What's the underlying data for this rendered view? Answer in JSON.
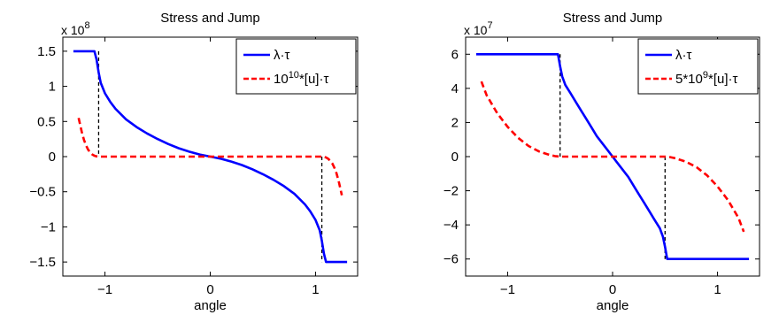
{
  "chart_data": [
    {
      "type": "line",
      "title": "Stress and Jump",
      "xlabel": "angle",
      "ylabel": "",
      "y_exponent_label": {
        "base": "x 10",
        "exp": "8"
      },
      "xlim": [
        -1.4,
        1.4
      ],
      "ylim": [
        -1.7,
        1.7
      ],
      "x_ticks": [
        -1,
        0,
        1
      ],
      "x_tick_labels": [
        "−1",
        "0",
        "1"
      ],
      "y_ticks": [
        1.5,
        1,
        0.5,
        0,
        -0.5,
        -1,
        -1.5
      ],
      "y_tick_labels": [
        "1.5",
        "1",
        "0.5",
        "0",
        "−0.5",
        "−1",
        "−1.5"
      ],
      "grid": false,
      "legend_position": "top-right",
      "series": [
        {
          "name": "λ·τ",
          "legend_parts": [
            {
              "t": "λ·τ"
            }
          ],
          "color": "#0000ff",
          "style": "solid",
          "x": [
            -1.3,
            -1.1,
            -1.08,
            -1.06,
            -1.04,
            -1.0,
            -0.95,
            -0.9,
            -0.8,
            -0.7,
            -0.6,
            -0.5,
            -0.4,
            -0.3,
            -0.2,
            -0.1,
            0,
            0.1,
            0.2,
            0.3,
            0.4,
            0.5,
            0.6,
            0.7,
            0.8,
            0.9,
            0.95,
            1.0,
            1.04,
            1.06,
            1.08,
            1.1,
            1.3
          ],
          "y": [
            1.5,
            1.5,
            1.38,
            1.2,
            1.05,
            0.9,
            0.78,
            0.68,
            0.53,
            0.42,
            0.33,
            0.25,
            0.18,
            0.12,
            0.07,
            0.03,
            0,
            -0.03,
            -0.07,
            -0.12,
            -0.18,
            -0.25,
            -0.33,
            -0.42,
            -0.53,
            -0.68,
            -0.78,
            -0.9,
            -1.05,
            -1.2,
            -1.38,
            -1.5,
            -1.5
          ]
        },
        {
          "name": "10^10*[u]·τ",
          "legend_parts": [
            {
              "t": "10"
            },
            {
              "t": "10",
              "sup": true
            },
            {
              "t": "*[u]·τ"
            }
          ],
          "color": "#ff0000",
          "style": "dashed",
          "x": [
            -1.25,
            -1.22,
            -1.2,
            -1.18,
            -1.16,
            -1.14,
            -1.12,
            -1.1,
            -1.08,
            -1.06,
            0,
            1.06,
            1.08,
            1.1,
            1.12,
            1.14,
            1.16,
            1.18,
            1.2,
            1.22,
            1.25
          ],
          "y": [
            0.55,
            0.35,
            0.24,
            0.16,
            0.1,
            0.06,
            0.03,
            0.012,
            0.004,
            0,
            0,
            0,
            0.004,
            -0.012,
            -0.03,
            -0.06,
            -0.1,
            -0.16,
            -0.24,
            -0.35,
            -0.55
          ]
        }
      ],
      "dropped_lines": [
        {
          "x": -1.06,
          "y": [
            1.5,
            0
          ]
        },
        {
          "x": 1.06,
          "y": [
            0,
            -1.5
          ]
        }
      ]
    },
    {
      "type": "line",
      "title": "Stress and Jump",
      "xlabel": "angle",
      "ylabel": "",
      "y_exponent_label": {
        "base": "x 10",
        "exp": "7"
      },
      "xlim": [
        -1.4,
        1.4
      ],
      "ylim": [
        -7,
        7
      ],
      "x_ticks": [
        -1,
        0,
        1
      ],
      "x_tick_labels": [
        "−1",
        "0",
        "1"
      ],
      "y_ticks": [
        6,
        4,
        2,
        0,
        -2,
        -4,
        -6
      ],
      "y_tick_labels": [
        "6",
        "4",
        "2",
        "0",
        "−2",
        "−4",
        "−6"
      ],
      "grid": false,
      "legend_position": "top-right",
      "series": [
        {
          "name": "λ·τ",
          "legend_parts": [
            {
              "t": "λ·τ"
            }
          ],
          "color": "#0000ff",
          "style": "solid",
          "x": [
            -1.3,
            -0.52,
            -0.5,
            -0.48,
            -0.45,
            -0.4,
            -0.35,
            -0.3,
            -0.25,
            -0.2,
            -0.15,
            -0.1,
            -0.05,
            0,
            0.05,
            0.1,
            0.15,
            0.2,
            0.25,
            0.3,
            0.35,
            0.4,
            0.45,
            0.48,
            0.5,
            0.52,
            1.3
          ],
          "y": [
            6,
            6,
            5.3,
            4.7,
            4.2,
            3.7,
            3.2,
            2.7,
            2.2,
            1.7,
            1.2,
            0.8,
            0.4,
            0,
            -0.4,
            -0.8,
            -1.2,
            -1.7,
            -2.2,
            -2.7,
            -3.2,
            -3.7,
            -4.2,
            -4.7,
            -5.3,
            -6,
            -6
          ]
        },
        {
          "name": "5*10^9*[u]·τ",
          "legend_parts": [
            {
              "t": "5*10"
            },
            {
              "t": "9",
              "sup": true
            },
            {
              "t": "*[u]·τ"
            }
          ],
          "color": "#ff0000",
          "style": "dashed",
          "x": [
            -1.25,
            -1.2,
            -1.1,
            -1.0,
            -0.9,
            -0.8,
            -0.7,
            -0.6,
            -0.55,
            -0.5,
            0,
            0.5,
            0.55,
            0.6,
            0.7,
            0.8,
            0.9,
            1.0,
            1.1,
            1.2,
            1.25
          ],
          "y": [
            4.4,
            3.6,
            2.55,
            1.75,
            1.1,
            0.62,
            0.3,
            0.1,
            0.03,
            0,
            0,
            0,
            -0.03,
            -0.1,
            -0.3,
            -0.62,
            -1.1,
            -1.75,
            -2.55,
            -3.6,
            -4.4
          ]
        }
      ],
      "dropped_lines": [
        {
          "x": -0.5,
          "y": [
            6,
            0
          ]
        },
        {
          "x": 0.5,
          "y": [
            0,
            -6
          ]
        }
      ]
    }
  ]
}
